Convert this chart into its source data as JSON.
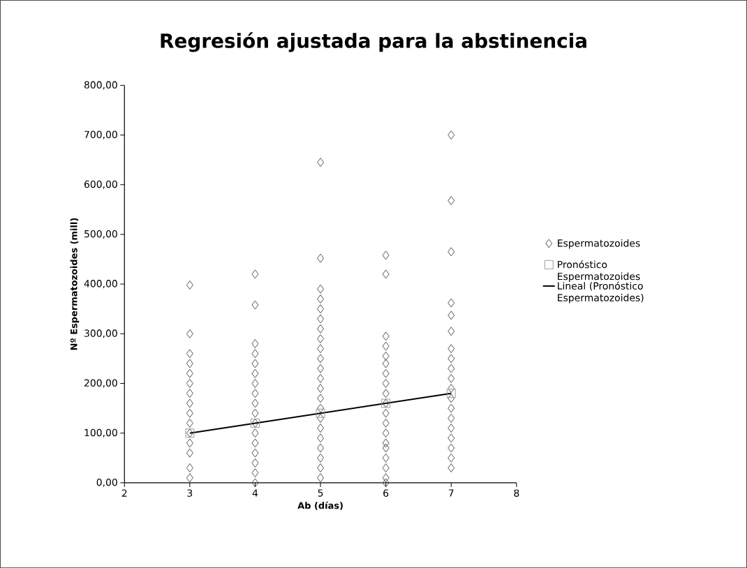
{
  "chart_data": {
    "type": "scatter",
    "title": "Regresión ajustada para la abstinencia",
    "xlabel": "Ab (días)",
    "ylabel": "Nº Espermatozoides (mill)",
    "xlim": [
      2,
      8
    ],
    "xticks": [
      2,
      3,
      4,
      5,
      6,
      7,
      8
    ],
    "ylim": [
      0,
      800
    ],
    "yticks": [
      {
        "value": 0,
        "label": "0,00"
      },
      {
        "value": 100,
        "label": "100,00"
      },
      {
        "value": 200,
        "label": "200,00"
      },
      {
        "value": 300,
        "label": "300,00"
      },
      {
        "value": 400,
        "label": "400,00"
      },
      {
        "value": 500,
        "label": "500,00"
      },
      {
        "value": 600,
        "label": "600,00"
      },
      {
        "value": 700,
        "label": "700,00"
      },
      {
        "value": 800,
        "label": "800,00"
      }
    ],
    "legend": "right",
    "grid": false,
    "series": [
      {
        "name": "Espermatozoides",
        "marker": "diamond",
        "color": "#404040",
        "x": [
          3,
          3,
          3,
          3,
          3,
          3,
          3,
          3,
          3,
          3,
          3,
          3,
          3,
          3,
          3,
          4,
          4,
          4,
          4,
          4,
          4,
          4,
          4,
          4,
          4,
          4,
          4,
          4,
          4,
          4,
          4,
          4,
          5,
          5,
          5,
          5,
          5,
          5,
          5,
          5,
          5,
          5,
          5,
          5,
          5,
          5,
          5,
          5,
          5,
          5,
          5,
          5,
          5,
          5,
          6,
          6,
          6,
          6,
          6,
          6,
          6,
          6,
          6,
          6,
          6,
          6,
          6,
          6,
          6,
          6,
          6,
          6,
          6,
          7,
          7,
          7,
          7,
          7,
          7,
          7,
          7,
          7,
          7,
          7,
          7,
          7,
          7,
          7,
          7,
          7,
          7,
          7
        ],
        "values": [
          398,
          300,
          260,
          240,
          220,
          200,
          180,
          160,
          140,
          120,
          100,
          80,
          60,
          30,
          10,
          420,
          358,
          280,
          260,
          240,
          220,
          200,
          180,
          160,
          140,
          120,
          100,
          80,
          60,
          40,
          20,
          0,
          645,
          452,
          390,
          370,
          350,
          330,
          310,
          290,
          270,
          250,
          230,
          210,
          190,
          170,
          150,
          130,
          110,
          90,
          70,
          50,
          30,
          10,
          458,
          420,
          295,
          275,
          255,
          240,
          220,
          200,
          180,
          160,
          140,
          120,
          100,
          80,
          70,
          50,
          30,
          10,
          0,
          700,
          568,
          465,
          362,
          337,
          305,
          270,
          250,
          230,
          210,
          190,
          170,
          150,
          130,
          110,
          90,
          70,
          50,
          30
        ]
      },
      {
        "name": "Pronóstico Espermatozoides",
        "marker": "square",
        "color": "#909090",
        "x": [
          3,
          4,
          5,
          6,
          7
        ],
        "values": [
          100,
          120,
          140,
          160,
          180
        ]
      },
      {
        "name": "Lineal (Pronóstico Espermatozoides)",
        "type": "line",
        "marker": "none",
        "color": "#000000",
        "x": [
          3,
          7
        ],
        "values": [
          100,
          180
        ]
      }
    ]
  }
}
